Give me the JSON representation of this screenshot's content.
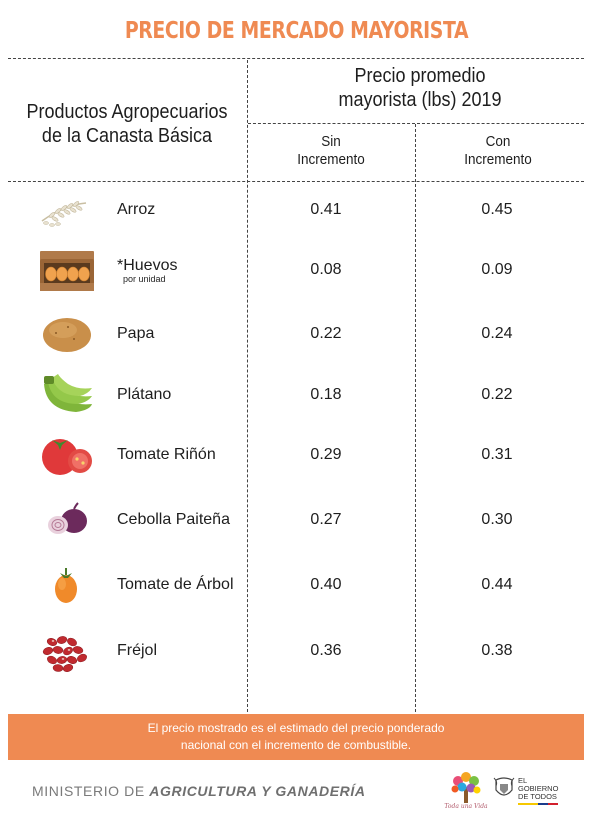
{
  "title": "PRECIO DE MERCADO MAYORISTA",
  "header": {
    "products_line1": "Productos Agropecuarios",
    "products_line2": "de la Canasta Básica",
    "price_line1": "Precio promedio",
    "price_line2": "mayorista (lbs) 2019",
    "col1_line1": "Sin",
    "col1_line2": "Incremento",
    "col2_line1": "Con",
    "col2_line2": "Incremento"
  },
  "rows": [
    {
      "icon": "rice-icon",
      "name": "Arroz",
      "sub": "",
      "sin": "0.41",
      "con": "0.45"
    },
    {
      "icon": "eggs-icon",
      "name": "*Huevos",
      "sub": "por unidad",
      "sin": "0.08",
      "con": "0.09"
    },
    {
      "icon": "potato-icon",
      "name": "Papa",
      "sub": "",
      "sin": "0.22",
      "con": "0.24"
    },
    {
      "icon": "plantain-icon",
      "name": "Plátano",
      "sub": "",
      "sin": "0.18",
      "con": "0.22"
    },
    {
      "icon": "tomato-icon",
      "name": "Tomate Riñón",
      "sub": "",
      "sin": "0.29",
      "con": "0.31"
    },
    {
      "icon": "onion-icon",
      "name": "Cebolla Paiteña",
      "sub": "",
      "sin": "0.27",
      "con": "0.30"
    },
    {
      "icon": "tree-tomato-icon",
      "name": "Tomate de Árbol",
      "sub": "",
      "sin": "0.40",
      "con": "0.44"
    },
    {
      "icon": "beans-icon",
      "name": "Fréjol",
      "sub": "",
      "sin": "0.36",
      "con": "0.38"
    }
  ],
  "banner": {
    "line1": "El precio mostrado es el estimado del precio ponderado",
    "line2": "nacional con el incremento de combustible."
  },
  "footer": {
    "ministry_light1": "MINISTERIO DE ",
    "ministry_bold": "AGRICULTURA Y GANADERÍA",
    "logo1_text": "Toda una Vida",
    "logo2_line1": "EL",
    "logo2_line2": "GOBIERNO",
    "logo2_line3": "DE TODOS"
  },
  "colors": {
    "accent": "#ef8a52",
    "text": "#1e1e1e",
    "divider": "#444444"
  }
}
